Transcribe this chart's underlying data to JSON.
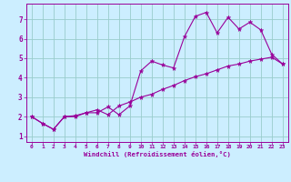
{
  "xlabel": "Windchill (Refroidissement éolien,°C)",
  "background_color": "#cceeff",
  "line_color": "#990099",
  "grid_color": "#99cccc",
  "xlim": [
    -0.5,
    23.5
  ],
  "ylim": [
    0.7,
    7.8
  ],
  "xticks": [
    0,
    1,
    2,
    3,
    4,
    5,
    6,
    7,
    8,
    9,
    10,
    11,
    12,
    13,
    14,
    15,
    16,
    17,
    18,
    19,
    20,
    21,
    22,
    23
  ],
  "yticks": [
    1,
    2,
    3,
    4,
    5,
    6,
    7
  ],
  "x_data": [
    0,
    1,
    2,
    3,
    4,
    5,
    6,
    7,
    8,
    9,
    10,
    11,
    12,
    13,
    14,
    15,
    16,
    17,
    18,
    19,
    20,
    21,
    22,
    23
  ],
  "y_line1": [
    2.0,
    1.65,
    1.35,
    2.0,
    2.0,
    2.2,
    2.2,
    2.5,
    2.1,
    2.55,
    4.35,
    4.85,
    4.65,
    4.5,
    6.1,
    7.15,
    7.35,
    6.3,
    7.1,
    6.5,
    6.85,
    6.45,
    5.2,
    4.7
  ],
  "y_line2": [
    2.0,
    1.65,
    1.35,
    2.0,
    2.05,
    2.2,
    2.35,
    2.1,
    2.55,
    2.75,
    3.0,
    3.15,
    3.4,
    3.6,
    3.85,
    4.05,
    4.2,
    4.4,
    4.6,
    4.7,
    4.85,
    4.95,
    5.05,
    4.7
  ]
}
